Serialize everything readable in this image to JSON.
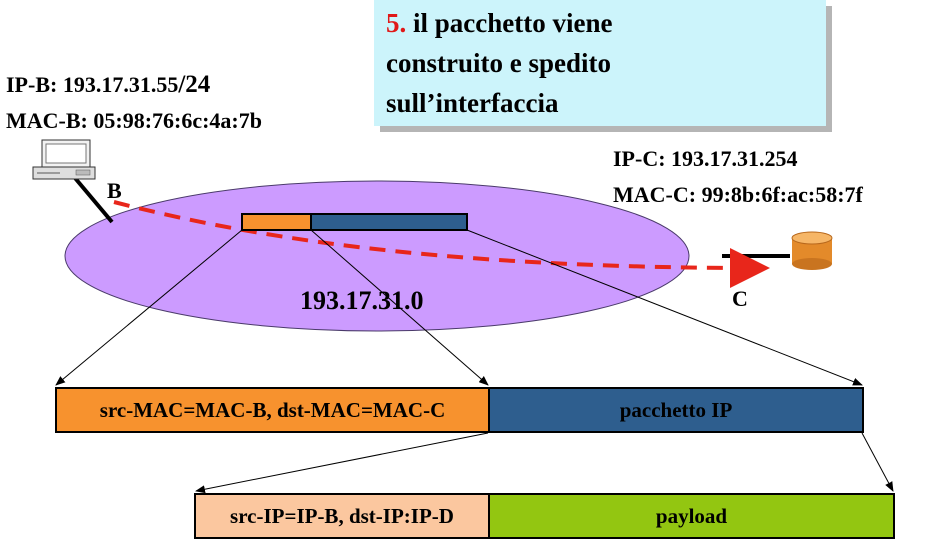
{
  "callout": {
    "step_number": "5.",
    "lines": [
      "il pacchetto viene",
      "construito e spedito",
      "sull’interfaccia"
    ]
  },
  "host_b": {
    "ip_label": "IP-B: 193.17.31.55",
    "ip_suffix": "/24",
    "mac_label": "MAC-B: 05:98:76:6c:4a:7b",
    "node_letter": "B"
  },
  "host_c": {
    "ip_label": "IP-C: 193.17.31.254",
    "mac_label": "MAC-C: 99:8b:6f:ac:58:7f",
    "node_letter": "C"
  },
  "network": {
    "label": "193.17.31.0"
  },
  "ethernet_frame": {
    "header": "src-MAC=MAC-B, dst-MAC=MAC-C",
    "payload": "pacchetto IP"
  },
  "ip_packet": {
    "header": "src-IP=IP-B, dst-IP:IP-D",
    "payload": "payload"
  },
  "colors": {
    "network_fill": "#cc9bff",
    "mac_header": "#f7922e",
    "ip_packet_box": "#2e5e8e",
    "ip_header": "#fbc79f",
    "payload": "#93c611",
    "path": "#e8261b",
    "callout_bg": "#ccf4fb",
    "step_number": "#e01818"
  }
}
